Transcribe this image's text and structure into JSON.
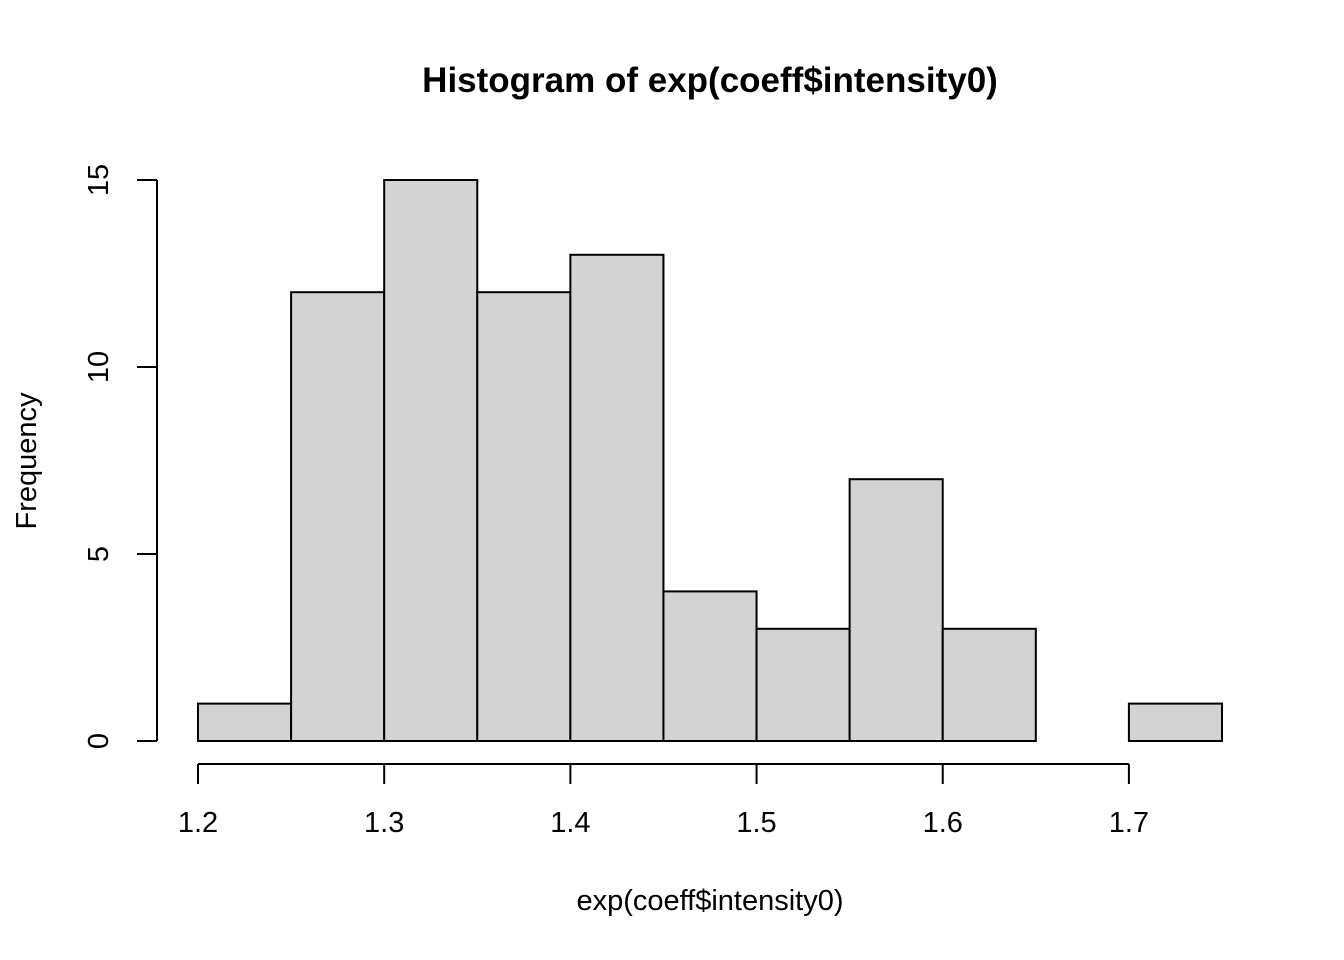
{
  "chart_data": {
    "type": "bar",
    "title": "Histogram of exp(coeff$intensity0)",
    "xlabel": "exp(coeff$intensity0)",
    "ylabel": "Frequency",
    "bins": [
      {
        "x0": 1.2,
        "x1": 1.25,
        "count": 1
      },
      {
        "x0": 1.25,
        "x1": 1.3,
        "count": 12
      },
      {
        "x0": 1.3,
        "x1": 1.35,
        "count": 15
      },
      {
        "x0": 1.35,
        "x1": 1.4,
        "count": 12
      },
      {
        "x0": 1.4,
        "x1": 1.45,
        "count": 13
      },
      {
        "x0": 1.45,
        "x1": 1.5,
        "count": 4
      },
      {
        "x0": 1.5,
        "x1": 1.55,
        "count": 3
      },
      {
        "x0": 1.55,
        "x1": 1.6,
        "count": 7
      },
      {
        "x0": 1.6,
        "x1": 1.65,
        "count": 3
      },
      {
        "x0": 1.65,
        "x1": 1.7,
        "count": 0
      },
      {
        "x0": 1.7,
        "x1": 1.75,
        "count": 1
      }
    ],
    "xlim": [
      1.2,
      1.75
    ],
    "ylim": [
      0,
      15
    ],
    "x_ticks": [
      "1.2",
      "1.3",
      "1.4",
      "1.5",
      "1.6",
      "1.7"
    ],
    "y_ticks": [
      "0",
      "5",
      "10",
      "15"
    ],
    "grid": false,
    "legend": "none",
    "colors": {
      "bar_fill": "#d3d3d3",
      "bar_stroke": "#000000"
    }
  }
}
